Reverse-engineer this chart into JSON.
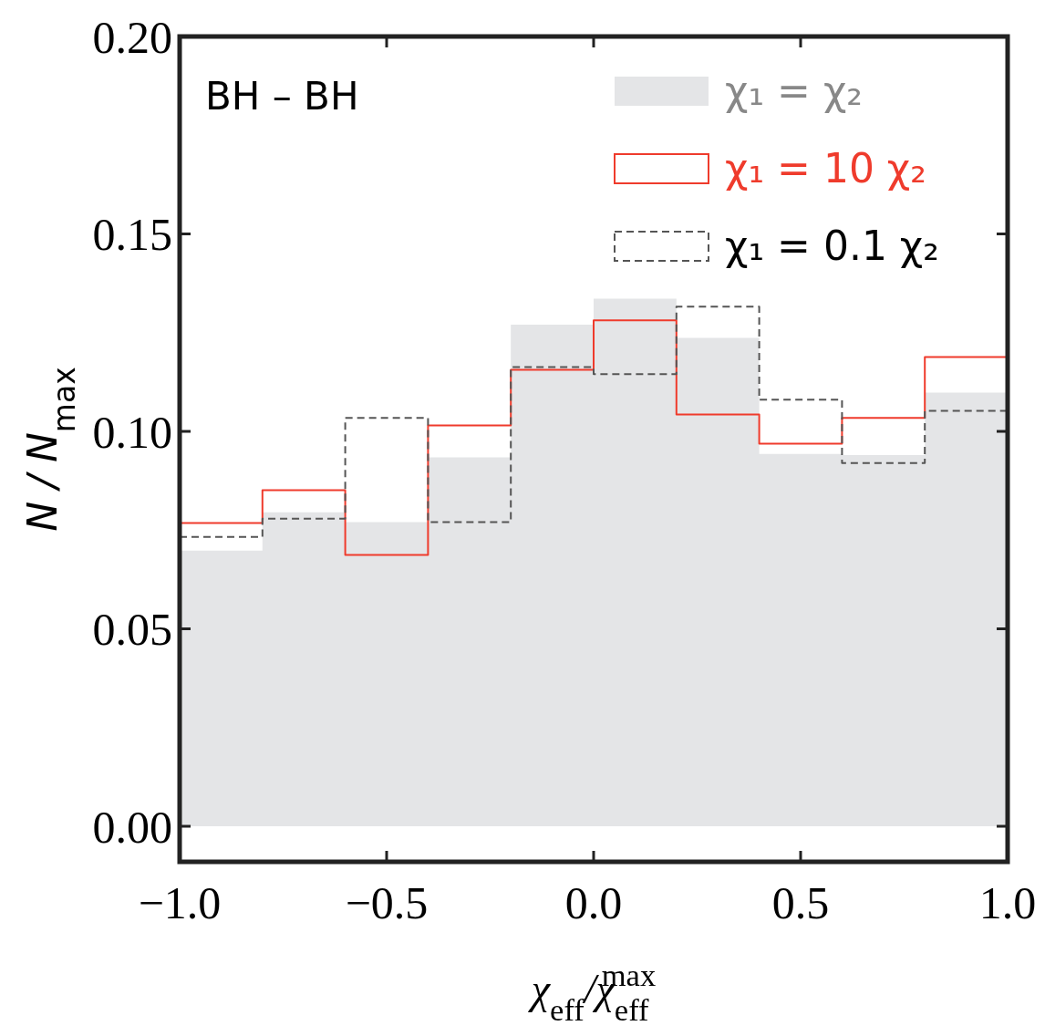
{
  "chart_data": {
    "type": "step",
    "xlabel": "χ$_{eff}$/χ$_{eff}$$^{max}$",
    "ylabel": "N / N$_{max}$",
    "series": [
      {
        "type": "area",
        "name": "χ₁ = χ₂",
        "color": "#e4e5e7",
        "x": [
          -1.0,
          -0.8,
          -0.6,
          -0.4,
          -0.2,
          0.0,
          0.2,
          0.4,
          0.6,
          0.8,
          1.0
        ],
        "values": [
          0.0698,
          0.0795,
          0.077,
          0.0934,
          0.127,
          0.1336,
          0.1237,
          0.0943,
          0.094,
          0.1098,
          0.1098
        ]
      },
      {
        "name": "χ₁ = 10 χ₂",
        "color": "#ef3b2c",
        "line_style": "solid",
        "x": [
          -1.0,
          -0.8,
          -0.6,
          -0.4,
          -0.2,
          0.0,
          0.2,
          0.4,
          0.6,
          0.8,
          1.0
        ],
        "values": [
          0.0768,
          0.0851,
          0.0687,
          0.1015,
          0.1156,
          0.1281,
          0.1043,
          0.0969,
          0.1034,
          0.1188,
          0.1188
        ]
      },
      {
        "name": "χ₁ = 0.1 χ₂",
        "color": "#555555",
        "line_style": "dashed",
        "x": [
          -1.0,
          -0.8,
          -0.6,
          -0.4,
          -0.2,
          0.0,
          0.2,
          0.4,
          0.6,
          0.8,
          1.0
        ],
        "values": [
          0.0733,
          0.0779,
          0.1034,
          0.077,
          0.1163,
          0.1145,
          0.1316,
          0.108,
          0.092,
          0.1052,
          0.1052
        ]
      }
    ],
    "xlim": [
      -1.0,
      1.0
    ],
    "ylim": [
      -0.009,
      0.2
    ],
    "xticks": [
      {
        "value": -1,
        "label": "−1.0"
      },
      {
        "value": -0.5,
        "label": "−0.5"
      },
      {
        "value": 0,
        "label": "0.0"
      },
      {
        "value": 0.5,
        "label": "0.5"
      },
      {
        "value": 1,
        "label": "1.0"
      }
    ],
    "yticks": [
      {
        "value": 0,
        "label": "0.00"
      },
      {
        "value": 0.05,
        "label": "0.05"
      },
      {
        "value": 0.1,
        "label": "0.10"
      },
      {
        "value": 0.15,
        "label": "0.15"
      },
      {
        "value": 0.2,
        "label": "0.20"
      }
    ],
    "grid": false,
    "legend": "top right",
    "annotations": [
      "BH – BH"
    ]
  }
}
